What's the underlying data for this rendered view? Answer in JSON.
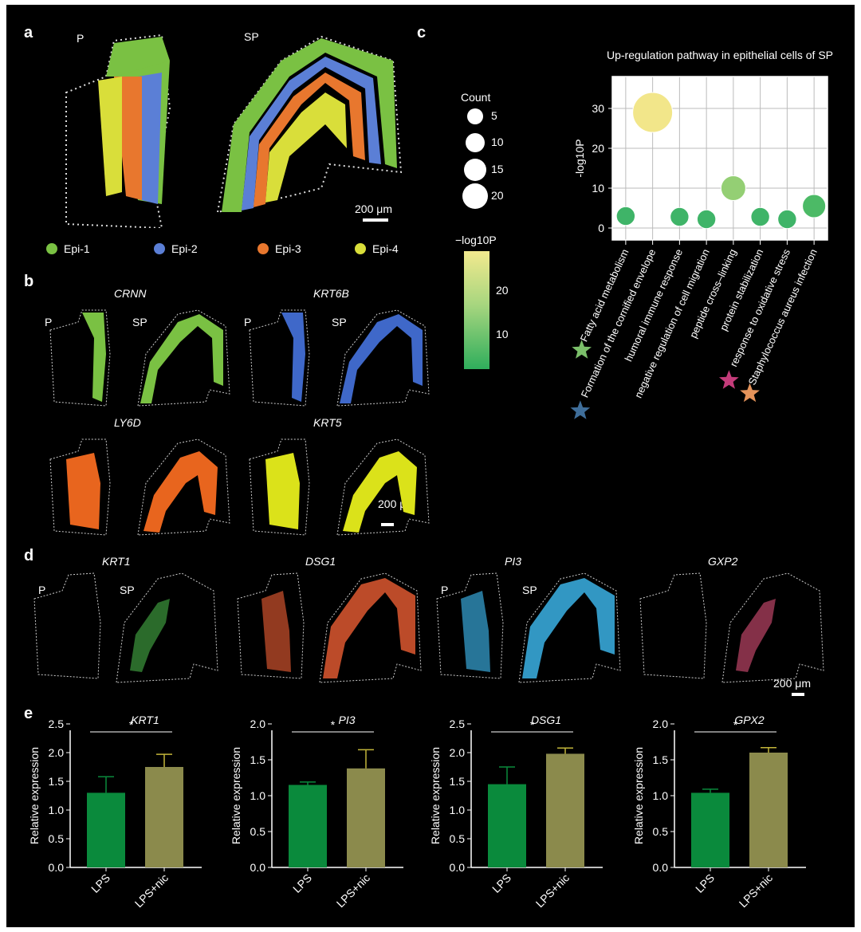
{
  "panels": {
    "a": "a",
    "b": "b",
    "c": "c",
    "d": "d",
    "e": "e"
  },
  "panel_a": {
    "left_label": "P",
    "right_label": "SP",
    "scale_label": "200 μm",
    "legend": [
      {
        "label": "Epi-1",
        "color": "#7ac143"
      },
      {
        "label": "Epi-2",
        "color": "#5b7fd6"
      },
      {
        "label": "Epi-3",
        "color": "#e8772e"
      },
      {
        "label": "Epi-4",
        "color": "#d9de3a"
      }
    ]
  },
  "panel_b": {
    "genes": [
      "CRNN",
      "KRT6B",
      "LY6D",
      "KRT5"
    ],
    "colors": [
      "#7ac143",
      "#3f68c9",
      "#e8651e",
      "#dbe21a"
    ],
    "label_p": "P",
    "label_sp": "SP",
    "scale_label": "200 μm"
  },
  "panel_c_legend": {
    "count_title": "Count",
    "count_values": [
      "5",
      "10",
      "15",
      "20"
    ],
    "color_title": "−log10P",
    "color_ticks": [
      "20",
      "10"
    ]
  },
  "panel_d": {
    "genes": [
      "KRT1",
      "DSG1",
      "PI3",
      "GXP2"
    ],
    "label_p": "P",
    "label_sp": "SP",
    "scale_label": "200 μm"
  },
  "chart_data": [
    {
      "type": "scatter",
      "title": "Up-regulation pathway in epithelial cells of SP",
      "ylabel": "-log10P",
      "ylim": [
        -3,
        38
      ],
      "yticks": [
        0,
        10,
        20,
        30
      ],
      "categories": [
        "Fatty acid metabolism",
        "Formation of the cornified envelope",
        "humoral immune response",
        "negative regulation of cell migration",
        "peptide cross–linking",
        "protein stabilization",
        "response to oxidative stress",
        "Staphylococcus aureus infection"
      ],
      "values": [
        3,
        29,
        2.8,
        2.2,
        10,
        2.8,
        2.2,
        5.5
      ],
      "counts": [
        6,
        20,
        6,
        6,
        10,
        6,
        6,
        9
      ],
      "colors": [
        "#3fb468",
        "#f2e68a",
        "#3fb468",
        "#3fb468",
        "#94cf74",
        "#3fb468",
        "#3fb468",
        "#4cba66"
      ],
      "stars": [
        {
          "category": "Fatty acid metabolism",
          "color": "#7bbf6a"
        },
        {
          "category": "Formation of the cornified envelope",
          "color": "#3f6e9a"
        },
        {
          "category": "response to oxidative stress",
          "color": "#c43c7a"
        },
        {
          "category": "Staphylococcus aureus infection",
          "color": "#e5935a"
        }
      ],
      "grid": true
    },
    {
      "type": "bar",
      "title": "KRT1",
      "categories": [
        "LPS",
        "LPS+nic"
      ],
      "values": [
        1.3,
        1.75
      ],
      "errors": [
        0.28,
        0.22
      ],
      "ylabel": "Relative expression",
      "ylim": [
        0,
        2.5
      ],
      "yticks": [
        "0.0",
        "0.5",
        "1.0",
        "1.5",
        "2.0",
        "2.5"
      ],
      "significance": "*"
    },
    {
      "type": "bar",
      "title": "PI3",
      "categories": [
        "LPS",
        "LPS+nic"
      ],
      "values": [
        1.15,
        1.38
      ],
      "errors": [
        0.04,
        0.26
      ],
      "ylabel": "Relative expression",
      "ylim": [
        0,
        2.0
      ],
      "yticks": [
        "0.0",
        "0.5",
        "1.0",
        "1.5",
        "2.0"
      ],
      "significance": "*"
    },
    {
      "type": "bar",
      "title": "DSG1",
      "categories": [
        "LPS",
        "LPS+nic"
      ],
      "values": [
        1.45,
        1.98
      ],
      "errors": [
        0.3,
        0.1
      ],
      "ylabel": "Relative expression",
      "ylim": [
        0,
        2.5
      ],
      "yticks": [
        "0.0",
        "0.5",
        "1.0",
        "1.5",
        "2.0",
        "2.5"
      ],
      "significance": "*"
    },
    {
      "type": "bar",
      "title": "GPX2",
      "categories": [
        "LPS",
        "LPS+nic"
      ],
      "values": [
        1.04,
        1.6
      ],
      "errors": [
        0.05,
        0.07
      ],
      "ylabel": "Relative expression",
      "ylim": [
        0,
        2.0
      ],
      "yticks": [
        "0.0",
        "0.5",
        "1.0",
        "1.5",
        "2.0"
      ],
      "significance": "*"
    }
  ],
  "bar_colors": [
    "#0a8a3c",
    "#8b8a4c"
  ],
  "errorbar_colors": [
    "#0a8a3c",
    "#c2b53a"
  ]
}
